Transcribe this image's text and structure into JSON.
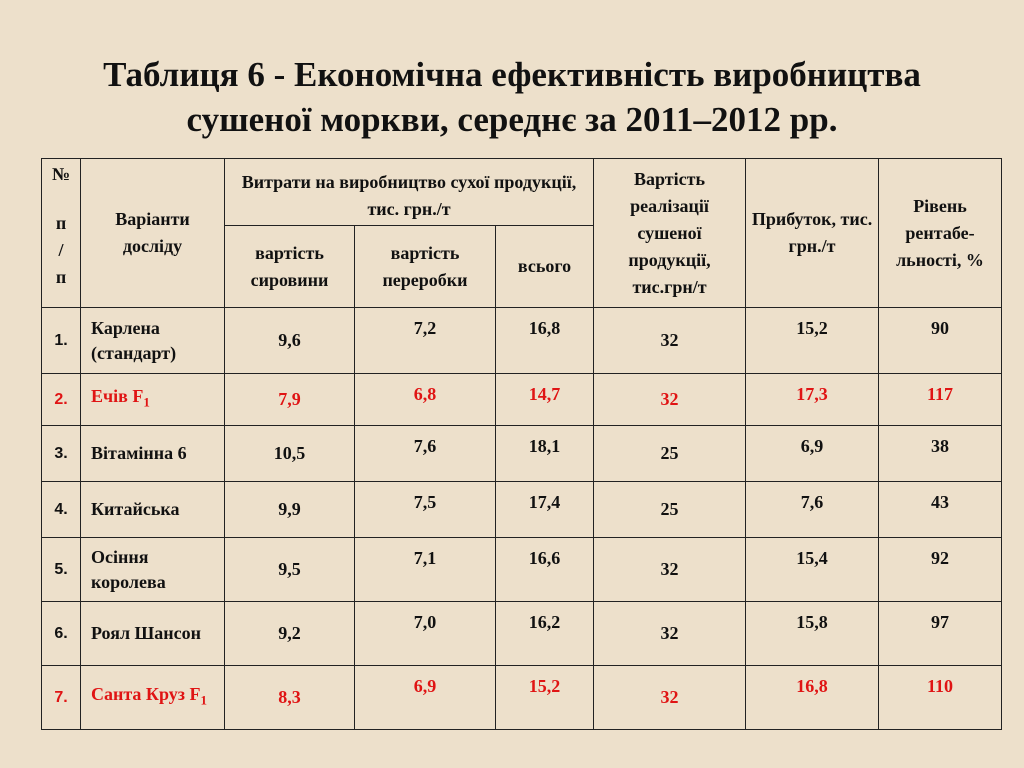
{
  "title": {
    "line1": "Таблиця 6 - Економічна ефективність виробництва",
    "line2": "сушеної моркви, середнє за 2011–2012 рр."
  },
  "table": {
    "headers": {
      "num_line1": "№",
      "num_line2": "п",
      "num_line3": "/",
      "num_line4": "п",
      "variant": "Варіанти досліду",
      "costs_group": "Витрати на виробництво сухої продукції, тис. грн./т",
      "cost_raw": "вартість сировини",
      "cost_processing": "вартість переробки",
      "cost_total": "всього",
      "sales_value": "Вартість реалізації сушеної продукції, тис.грн/т",
      "profit": "Прибуток, тис. грн./т",
      "profitability": "Рівень рентабе-льності, %"
    },
    "rows": [
      {
        "num": "1.",
        "name": "Карлена (стандарт)",
        "sub": "",
        "raw": "9,6",
        "processing": "7,2",
        "total": "16,8",
        "sales": "32",
        "profit": "15,2",
        "profitability": "90",
        "highlight": false
      },
      {
        "num": "2.",
        "name": "Ечів F",
        "sub": "1",
        "raw": "7,9",
        "processing": "6,8",
        "total": "14,7",
        "sales": "32",
        "profit": "17,3",
        "profitability": "117",
        "highlight": true
      },
      {
        "num": "3.",
        "name": "Вітамінна 6",
        "sub": "",
        "raw": "10,5",
        "processing": "7,6",
        "total": "18,1",
        "sales": "25",
        "profit": "6,9",
        "profitability": "38",
        "highlight": false
      },
      {
        "num": "4.",
        "name": "Китайська",
        "sub": "",
        "raw": "9,9",
        "processing": "7,5",
        "total": "17,4",
        "sales": "25",
        "profit": "7,6",
        "profitability": "43",
        "highlight": false
      },
      {
        "num": "5.",
        "name": "Осіння королева",
        "sub": "",
        "raw": "9,5",
        "processing": "7,1",
        "total": "16,6",
        "sales": "32",
        "profit": "15,4",
        "profitability": "92",
        "highlight": false
      },
      {
        "num": "6.",
        "name": "Роял Шансон",
        "sub": "",
        "raw": "9,2",
        "processing": "7,0",
        "total": "16,2",
        "sales": "32",
        "profit": "15,8",
        "profitability": "97",
        "highlight": false
      },
      {
        "num": "7.",
        "name": "Санта Круз F",
        "sub": "1",
        "raw": "8,3",
        "processing": "6,9",
        "total": "15,2",
        "sales": "32",
        "profit": "16,8",
        "profitability": "110",
        "highlight": true
      }
    ],
    "highlight_color": "#e01414"
  }
}
